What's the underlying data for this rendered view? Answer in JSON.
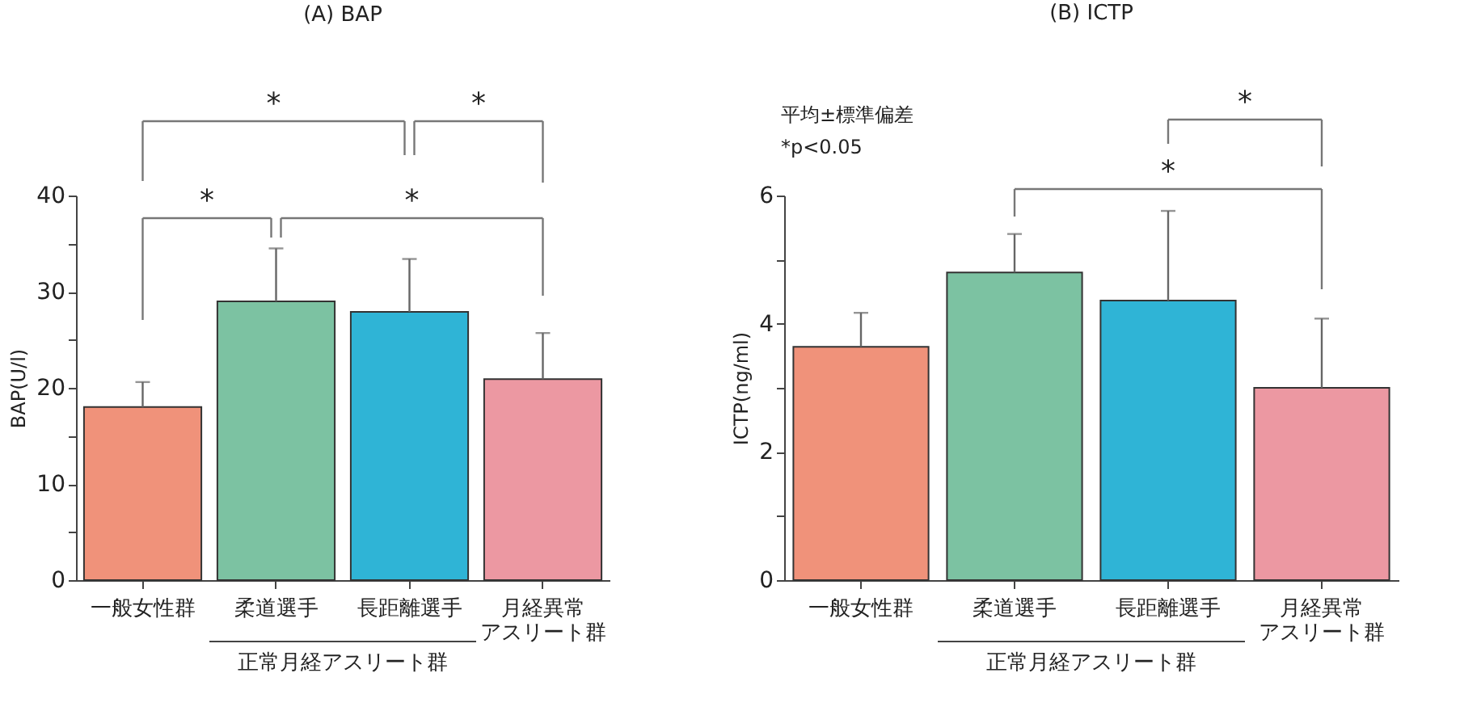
{
  "chart_data": [
    {
      "type": "bar",
      "title": "(A)  BAP",
      "ylabel": "BAP(U/l)",
      "categories": [
        "一般女性群",
        "柔道選手",
        "長距離選手",
        "月経異常アスリート群"
      ],
      "values": [
        18.0,
        29.0,
        27.9,
        20.9
      ],
      "errors": [
        [
          18.0,
          20.6
        ],
        [
          29.0,
          34.5
        ],
        [
          27.9,
          33.4
        ],
        [
          20.9,
          25.7
        ]
      ],
      "colors": [
        "#f0927a",
        "#7cc2a2",
        "#2fb4d6",
        "#ec98a2"
      ],
      "ylim": [
        0,
        40
      ],
      "yticks": [
        0,
        {
          "value": 5,
          "label": null
        },
        10,
        {
          "value": 15,
          "label": null
        },
        20,
        {
          "value": 25,
          "label": null
        },
        30,
        {
          "value": 35,
          "label": null
        },
        40
      ],
      "grid": false,
      "annotations": [
        "*",
        "*",
        "*",
        "*",
        "正常月経アスリート群"
      ]
    },
    {
      "type": "bar",
      "title": "(B)  ICTP",
      "ylabel": "ICTP(ng/ml)",
      "categories": [
        "一般女性群",
        "柔道選手",
        "長距離選手",
        "月経異常アスリート群"
      ],
      "values": [
        3.64,
        4.8,
        4.36,
        3.0
      ],
      "errors": [
        [
          3.64,
          4.17
        ],
        [
          4.8,
          5.4
        ],
        [
          4.36,
          5.76
        ],
        [
          3.0,
          4.08
        ]
      ],
      "colors": [
        "#f0927a",
        "#7cc2a2",
        "#2fb4d6",
        "#ec98a2"
      ],
      "ylim": [
        0,
        6
      ],
      "yticks": [
        0,
        {
          "value": 1,
          "label": null
        },
        2,
        {
          "value": 3,
          "label": null
        },
        4,
        {
          "value": 5,
          "label": null
        },
        6
      ],
      "grid": false,
      "annotations": [
        "平均±標準偏差",
        "*p<0.05",
        "*",
        "*",
        "正常月経アスリート群"
      ]
    }
  ]
}
